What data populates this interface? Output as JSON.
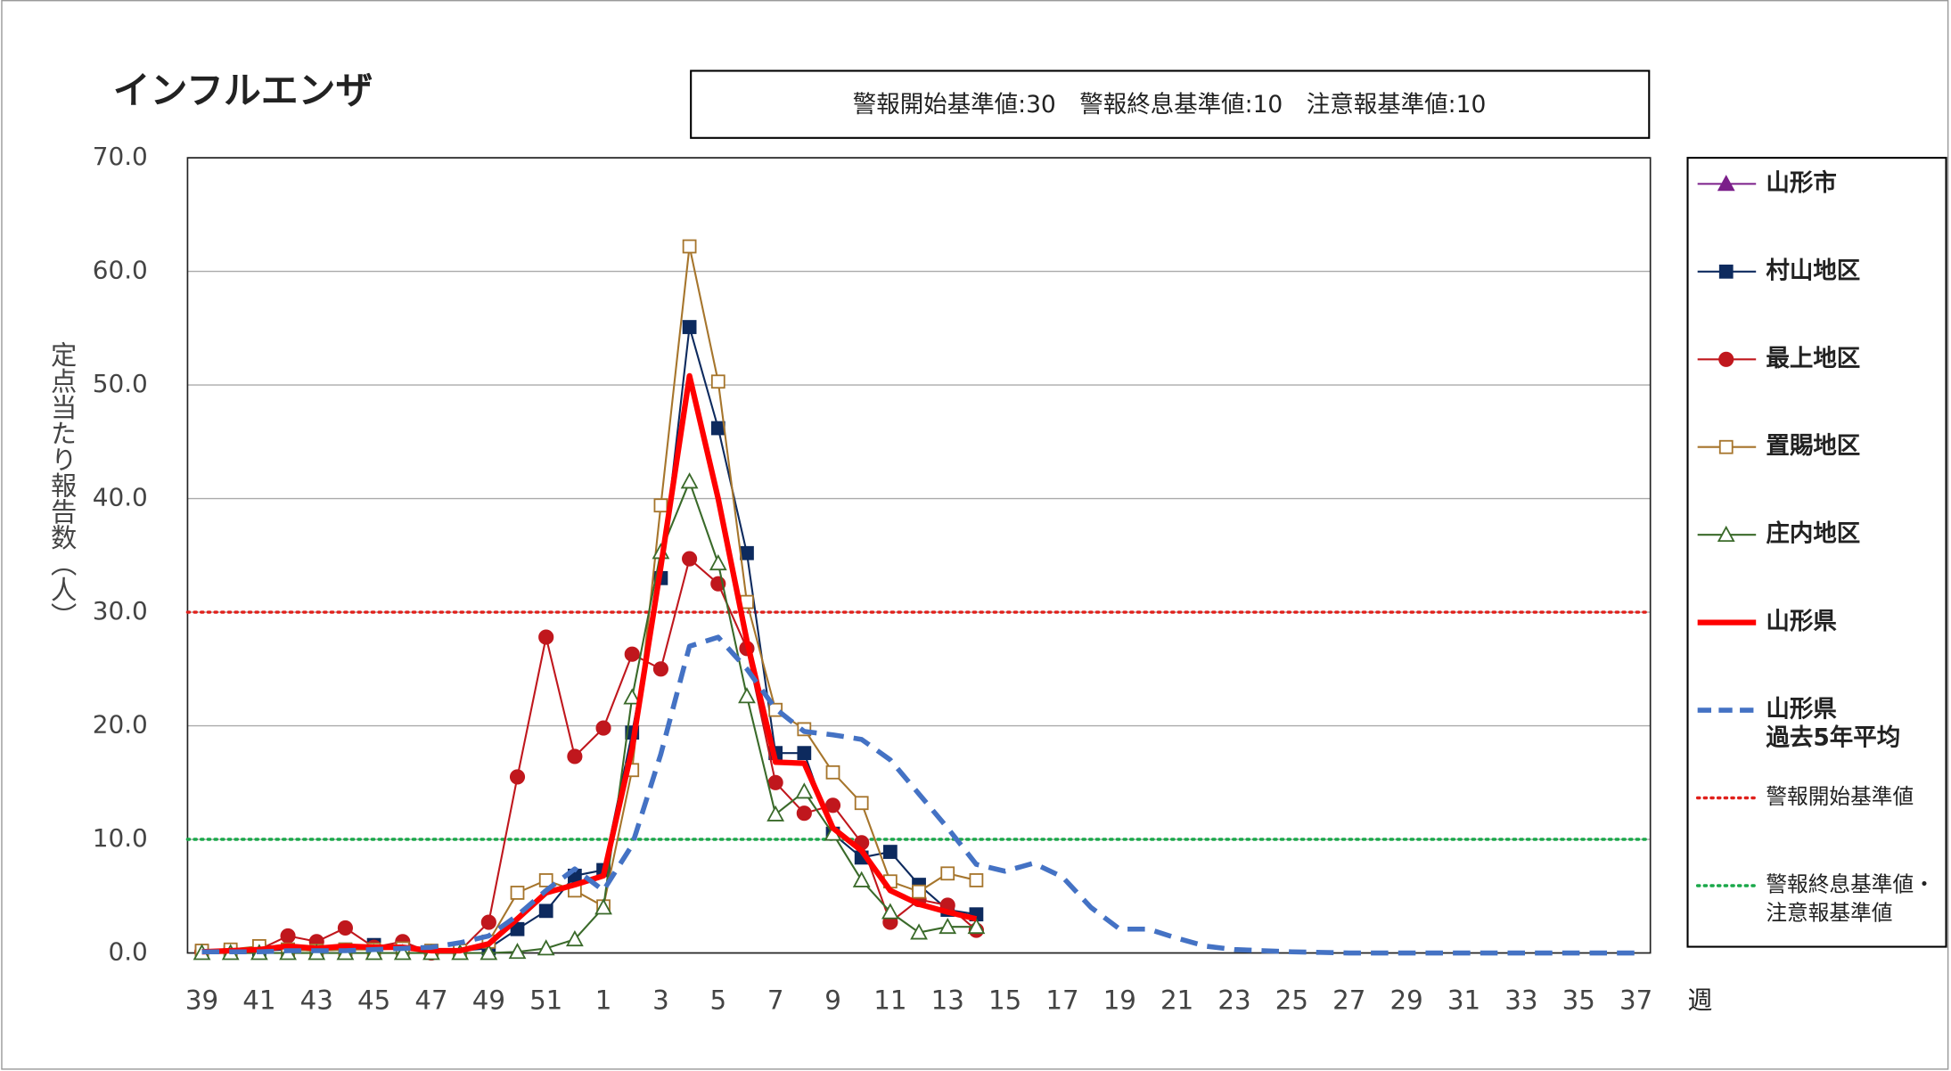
{
  "chart_data": {
    "type": "line",
    "title": "インフルエンザ",
    "annotation": "警報開始基準値:30　警報終息基準値:10　注意報基準値:10",
    "y_label": "定点当たり報告数（人）",
    "x_label": "週",
    "categories": [
      "39",
      null,
      "41",
      null,
      "43",
      null,
      "45",
      null,
      "47",
      null,
      "49",
      null,
      "51",
      null,
      "1",
      null,
      "3",
      null,
      "5",
      null,
      "7",
      null,
      "9",
      null,
      "11",
      null,
      "13",
      null,
      "15",
      null,
      "17",
      null,
      "19",
      null,
      "21",
      null,
      "23",
      null,
      "25",
      null,
      "27",
      null,
      "29",
      null,
      "31",
      null,
      "33",
      null,
      "35",
      null,
      "37"
    ],
    "ylim": [
      0,
      70
    ],
    "yticks": [
      {
        "value": 0,
        "label": "0.0"
      },
      {
        "value": 10,
        "label": "10.0"
      },
      {
        "value": 20,
        "label": "20.0"
      },
      {
        "value": 30,
        "label": "30.0"
      },
      {
        "value": 40,
        "label": "40.0"
      },
      {
        "value": 50,
        "label": "50.0"
      },
      {
        "value": 60,
        "label": "60.0"
      },
      {
        "value": 70,
        "label": "70.0"
      }
    ],
    "grid": true,
    "legend": "right",
    "series": [
      {
        "name": [
          "山形市"
        ],
        "color": "#7b1f8a",
        "marker": "triangle",
        "filled": true,
        "width": 1.5,
        "values": [
          null,
          null,
          null,
          null,
          null,
          null,
          null,
          null,
          null,
          null,
          null,
          null,
          null,
          null,
          null,
          null,
          null,
          null,
          null,
          null,
          null,
          null,
          null,
          null,
          null,
          null,
          null,
          null,
          null,
          null,
          null,
          null,
          null,
          null,
          null,
          null,
          null,
          null,
          null,
          null,
          null,
          null,
          null,
          null,
          null,
          null,
          null,
          null,
          null,
          null,
          null
        ]
      },
      {
        "name": [
          "村山地区"
        ],
        "color": "#0d2a5e",
        "marker": "square",
        "filled": true,
        "width": 1.5,
        "values": [
          0.1,
          0.1,
          0.2,
          0.3,
          0.2,
          0.3,
          0.7,
          0.4,
          0.1,
          0.2,
          0.4,
          2.1,
          3.7,
          6.8,
          7.3,
          19.4,
          33.0,
          55.1,
          46.2,
          35.2,
          17.6,
          17.6,
          10.5,
          8.4,
          8.9,
          6.0,
          3.8,
          3.4,
          null,
          null,
          null,
          null,
          null,
          null,
          null,
          null,
          null,
          null,
          null,
          null,
          null,
          null,
          null,
          null,
          null,
          null,
          null,
          null,
          null,
          null,
          null
        ]
      },
      {
        "name": [
          "最上地区"
        ],
        "color": "#c0171d",
        "marker": "circle",
        "filled": true,
        "width": 1.5,
        "values": [
          0.1,
          0.2,
          0.3,
          1.5,
          1.0,
          2.2,
          0.5,
          1.0,
          0.0,
          0.2,
          2.7,
          15.5,
          27.8,
          17.3,
          19.8,
          26.3,
          25.0,
          34.7,
          32.5,
          26.8,
          15.0,
          12.3,
          13.0,
          9.7,
          2.7,
          4.7,
          4.2,
          2.0,
          null,
          null,
          null,
          null,
          null,
          null,
          null,
          null,
          null,
          null,
          null,
          null,
          null,
          null,
          null,
          null,
          null,
          null,
          null,
          null,
          null,
          null,
          null
        ]
      },
      {
        "name": [
          "置賜地区"
        ],
        "color": "#a6752c",
        "marker": "square",
        "filled": false,
        "width": 1.5,
        "values": [
          0.2,
          0.3,
          0.6,
          0.3,
          0.2,
          0.3,
          0.3,
          0.4,
          0.2,
          0.2,
          1.0,
          5.3,
          6.4,
          5.5,
          4.1,
          16.1,
          39.4,
          62.2,
          50.3,
          30.9,
          21.4,
          19.7,
          15.9,
          13.2,
          6.3,
          5.4,
          7.0,
          6.4,
          null,
          null,
          null,
          null,
          null,
          null,
          null,
          null,
          null,
          null,
          null,
          null,
          null,
          null,
          null,
          null,
          null,
          null,
          null,
          null,
          null,
          null,
          null
        ]
      },
      {
        "name": [
          "庄内地区"
        ],
        "color": "#3a6a2a",
        "marker": "triangle",
        "filled": false,
        "width": 1.5,
        "values": [
          0,
          0,
          0,
          0,
          0,
          0,
          0,
          0,
          0,
          0,
          0,
          0.1,
          0.4,
          1.2,
          4.0,
          22.5,
          35.3,
          41.5,
          34.3,
          22.6,
          12.2,
          14.2,
          10.5,
          6.4,
          3.6,
          1.8,
          2.3,
          2.3,
          null,
          null,
          null,
          null,
          null,
          null,
          null,
          null,
          null,
          null,
          null,
          null,
          null,
          null,
          null,
          null,
          null,
          null,
          null,
          null,
          null,
          null,
          null
        ]
      },
      {
        "name": [
          "山形県"
        ],
        "color": "#ff0000",
        "marker": "none",
        "filled": false,
        "width": 4.5,
        "values": [
          0.1,
          0.2,
          0.3,
          0.6,
          0.4,
          0.6,
          0.5,
          0.5,
          0.2,
          0.2,
          0.8,
          3.0,
          5.3,
          6.0,
          6.8,
          18.0,
          34.0,
          50.8,
          40.0,
          27.5,
          16.8,
          16.7,
          11.0,
          9.0,
          5.5,
          4.3,
          3.6,
          3.0,
          null,
          null,
          null,
          null,
          null,
          null,
          null,
          null,
          null,
          null,
          null,
          null,
          null,
          null,
          null,
          null,
          null,
          null,
          null,
          null,
          null,
          null,
          null
        ]
      },
      {
        "name": [
          "山形県",
          "過去5年平均"
        ],
        "color": "#4472c4",
        "marker": "none",
        "filled": false,
        "width": 4,
        "dash": true,
        "values": [
          0.1,
          0.1,
          0.1,
          0.2,
          0.2,
          0.2,
          0.3,
          0.4,
          0.5,
          0.9,
          1.5,
          3.3,
          5.5,
          7.4,
          5.5,
          9.5,
          17.5,
          27.0,
          27.8,
          25.0,
          21.5,
          19.5,
          19.2,
          18.8,
          17.0,
          14.0,
          11.0,
          7.8,
          7.2,
          7.9,
          6.7,
          4.0,
          2.1,
          2.1,
          1.3,
          0.6,
          0.3,
          0.2,
          0.1,
          0.05,
          0,
          0,
          0,
          0,
          0,
          0,
          0,
          0,
          0,
          0,
          0
        ]
      }
    ],
    "reference_lines": [
      {
        "name": [
          "警報開始基準値"
        ],
        "value": 30,
        "color": "#e0201b"
      },
      {
        "name": [
          "警報終息基準値・",
          "注意報基準値"
        ],
        "value": 10,
        "color": "#1aa84a"
      }
    ]
  }
}
